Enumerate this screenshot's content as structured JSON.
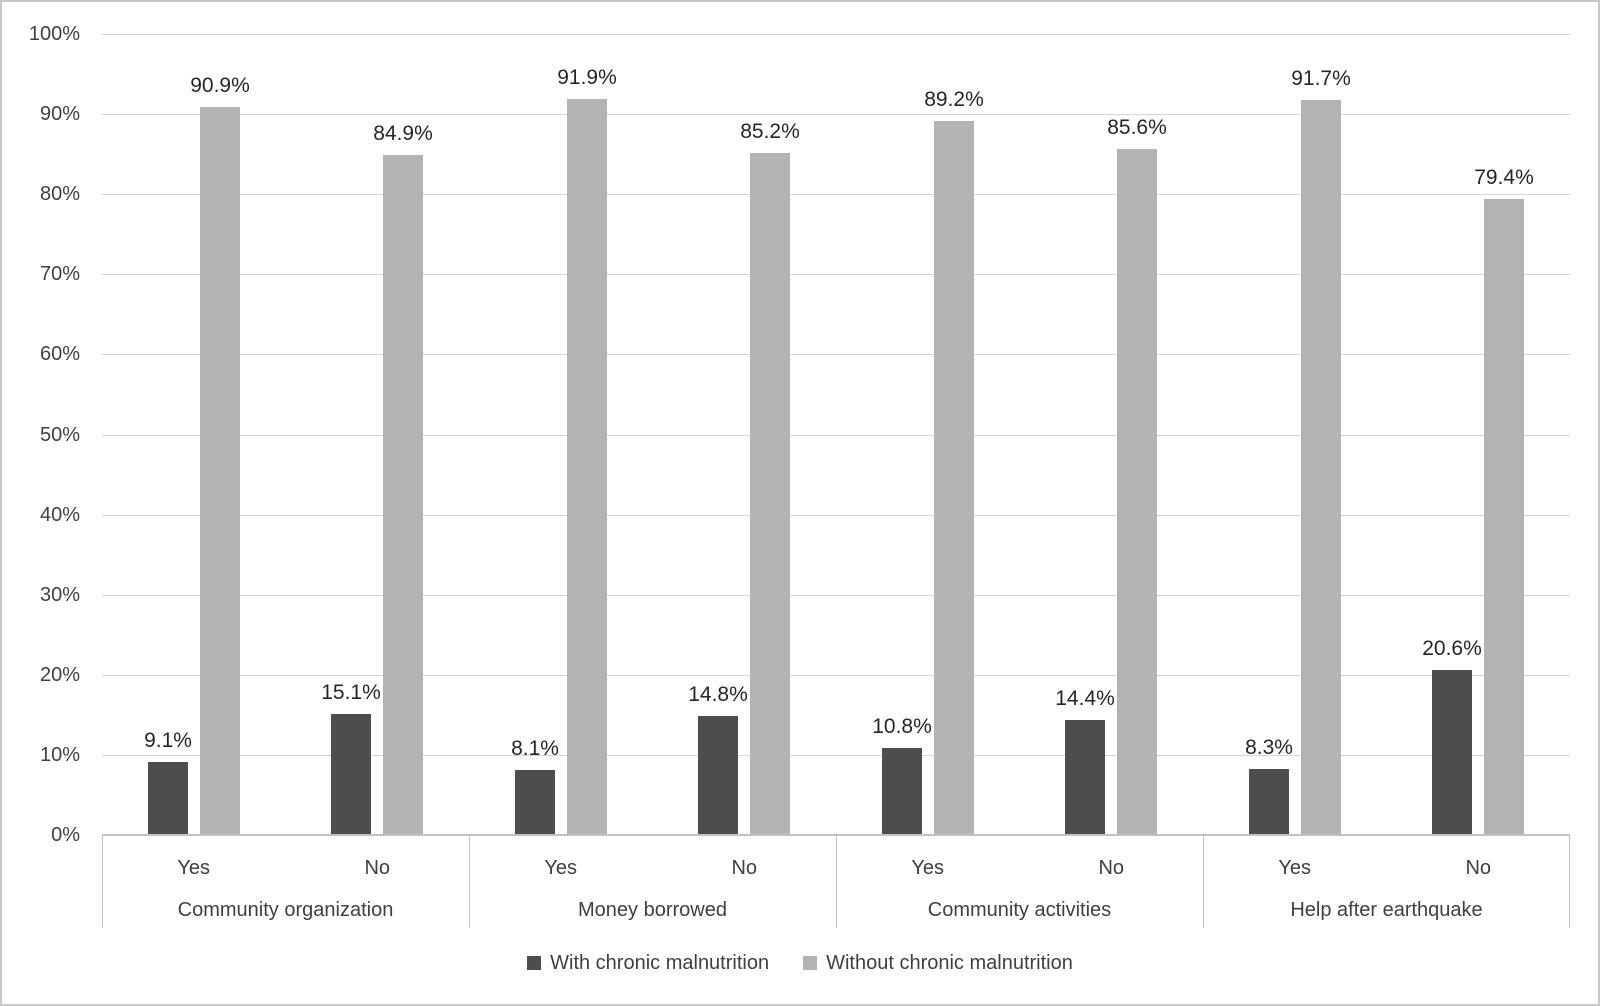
{
  "chart_data": {
    "type": "bar",
    "title": "",
    "group_labels": [
      "Community organization",
      "Money borrowed",
      "Community activities",
      "Help after earthquake"
    ],
    "categories": [
      "Yes",
      "No",
      "Yes",
      "No",
      "Yes",
      "No",
      "Yes",
      "No"
    ],
    "series": [
      {
        "name": "With chronic malnutrition",
        "color": "#4d4d4d",
        "values": [
          9.1,
          15.1,
          8.1,
          14.8,
          10.8,
          14.4,
          8.3,
          20.6
        ]
      },
      {
        "name": "Without chronic malnutrition",
        "color": "#b3b3b3",
        "values": [
          90.9,
          84.9,
          91.9,
          85.2,
          89.2,
          85.6,
          91.7,
          79.4
        ]
      }
    ],
    "data_labels": [
      [
        "9.1%",
        "15.1%",
        "8.1%",
        "14.8%",
        "10.8%",
        "14.4%",
        "8.3%",
        "20.6%"
      ],
      [
        "90.9%",
        "84.9%",
        "91.9%",
        "85.2%",
        "89.2%",
        "85.6%",
        "91.7%",
        "79.4%"
      ]
    ],
    "y_axis": {
      "tick_labels": [
        "0%",
        "10%",
        "20%",
        "30%",
        "40%",
        "50%",
        "60%",
        "70%",
        "80%",
        "90%",
        "100%"
      ],
      "min": 0,
      "max": 100,
      "step": 10
    },
    "grid": true,
    "legend_position": "bottom",
    "colors": {
      "gridline": "#d6d6d6",
      "axis_line": "#c2c2c2",
      "tick_text": "#404040",
      "data_label_text": "#262626",
      "frame_border": "#c8c8c8",
      "background": "#ffffff"
    }
  }
}
